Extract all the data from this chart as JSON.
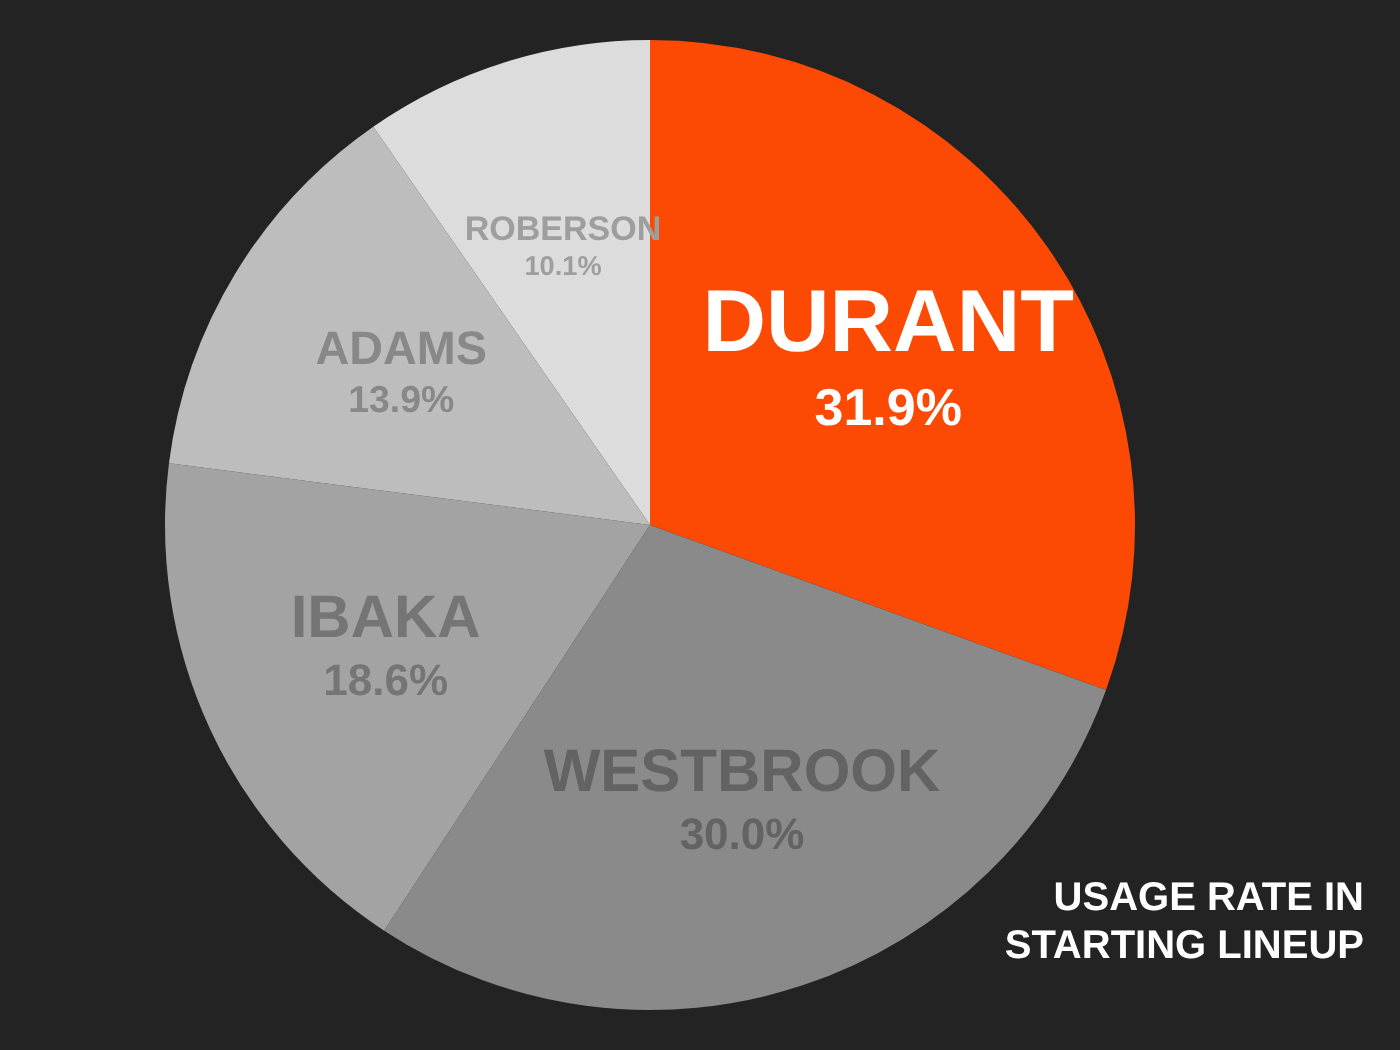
{
  "chart_data": {
    "type": "pie",
    "title": "USAGE RATE IN STARTING LINEUP",
    "categories": [
      "DURANT",
      "WESTBROOK",
      "IBAKA",
      "ADAMS",
      "ROBERSON"
    ],
    "values": [
      31.9,
      30.0,
      18.6,
      13.9,
      10.1
    ],
    "colors": [
      "#fc4a04",
      "#8a8a8a",
      "#a3a3a3",
      "#bdbdbd",
      "#dcdcdc"
    ],
    "value_labels": [
      "31.9%",
      "30.0%",
      "18.6%",
      "13.9%",
      "10.1%"
    ],
    "legend": false
  }
}
